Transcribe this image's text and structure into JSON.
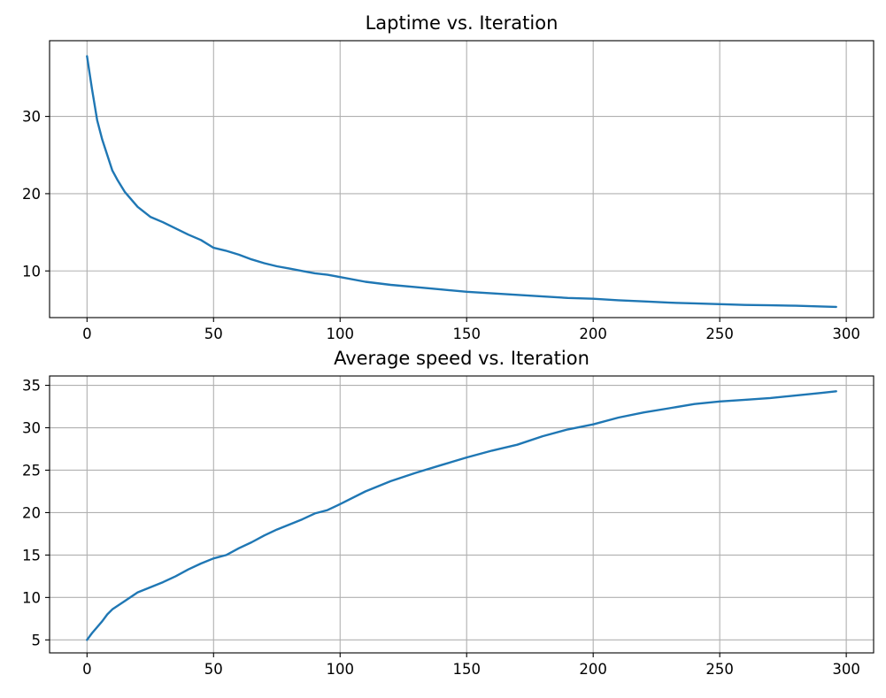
{
  "chart_data": [
    {
      "type": "line",
      "title": "Laptime vs. Iteration",
      "xlabel": "",
      "ylabel": "",
      "xlim": [
        -14.8,
        310.8
      ],
      "ylim": [
        3.96,
        39.8
      ],
      "xticks": [
        0,
        50,
        100,
        150,
        200,
        250,
        300
      ],
      "yticks": [
        10,
        20,
        30
      ],
      "grid": true,
      "series": [
        {
          "color": "#1f77b4",
          "x": [
            0,
            2,
            4,
            6,
            8,
            10,
            12,
            15,
            20,
            25,
            30,
            35,
            40,
            45,
            50,
            55,
            60,
            65,
            70,
            75,
            80,
            85,
            90,
            95,
            100,
            110,
            120,
            130,
            140,
            150,
            160,
            170,
            180,
            190,
            200,
            210,
            220,
            230,
            240,
            250,
            260,
            270,
            280,
            290,
            296
          ],
          "y": [
            37.8,
            33.5,
            29.5,
            27.0,
            25.0,
            23.0,
            21.8,
            20.2,
            18.3,
            17.0,
            16.3,
            15.5,
            14.7,
            14.0,
            13.0,
            12.6,
            12.1,
            11.5,
            11.0,
            10.6,
            10.3,
            10.0,
            9.7,
            9.5,
            9.2,
            8.6,
            8.2,
            7.9,
            7.6,
            7.3,
            7.1,
            6.9,
            6.7,
            6.5,
            6.4,
            6.2,
            6.05,
            5.9,
            5.8,
            5.7,
            5.6,
            5.55,
            5.5,
            5.4,
            5.35
          ]
        }
      ]
    },
    {
      "type": "line",
      "title": "Average speed vs. Iteration",
      "xlabel": "",
      "ylabel": "",
      "xlim": [
        -14.8,
        310.8
      ],
      "ylim": [
        3.47,
        36.1
      ],
      "xticks": [
        0,
        50,
        100,
        150,
        200,
        250,
        300
      ],
      "yticks": [
        5,
        10,
        15,
        20,
        25,
        30,
        35
      ],
      "grid": true,
      "series": [
        {
          "color": "#1f77b4",
          "x": [
            0,
            2,
            4,
            6,
            8,
            10,
            15,
            20,
            25,
            30,
            35,
            40,
            45,
            50,
            55,
            60,
            65,
            70,
            75,
            80,
            85,
            90,
            95,
            100,
            110,
            120,
            130,
            140,
            150,
            160,
            170,
            180,
            190,
            200,
            210,
            220,
            230,
            240,
            250,
            260,
            270,
            280,
            290,
            296
          ],
          "y": [
            5.0,
            5.8,
            6.5,
            7.2,
            8.0,
            8.6,
            9.6,
            10.6,
            11.2,
            11.8,
            12.5,
            13.3,
            14.0,
            14.6,
            15.0,
            15.8,
            16.5,
            17.3,
            18.0,
            18.6,
            19.2,
            19.9,
            20.3,
            21.0,
            22.5,
            23.7,
            24.7,
            25.6,
            26.5,
            27.3,
            28.0,
            29.0,
            29.8,
            30.4,
            31.2,
            31.8,
            32.3,
            32.8,
            33.1,
            33.3,
            33.5,
            33.8,
            34.1,
            34.3
          ]
        }
      ]
    }
  ]
}
